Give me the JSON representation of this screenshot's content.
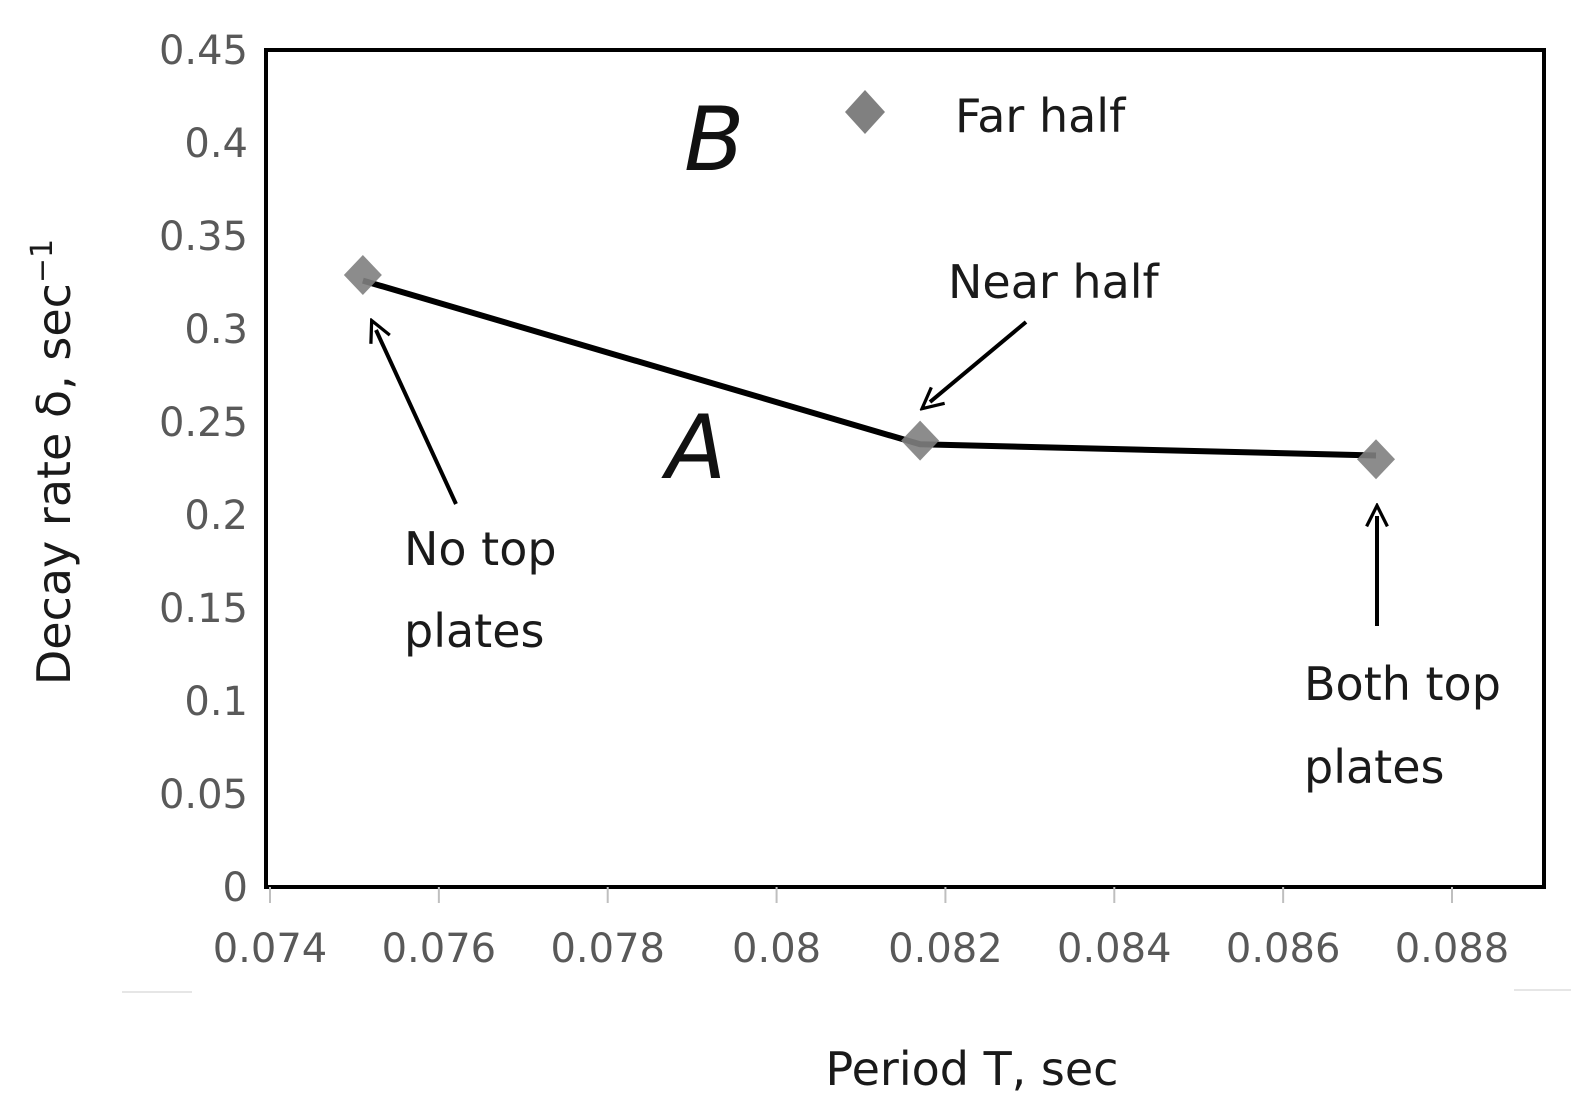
{
  "chart_data": {
    "type": "scatter",
    "title": "",
    "xlabel": "Period T, sec",
    "ylabel_main": "Decay rate δ,  sec",
    "ylabel_sup": "−1",
    "xlim": [
      0.074,
      0.089
    ],
    "ylim": [
      0,
      0.45
    ],
    "x_ticks": [
      "0.074",
      "0.076",
      "0.078",
      "0.08",
      "0.082",
      "0.084",
      "0.086",
      "0.088"
    ],
    "x_tick_values": [
      0.074,
      0.076,
      0.078,
      0.08,
      0.082,
      0.084,
      0.086,
      0.088
    ],
    "y_ticks": [
      "0",
      "0.05",
      "0.1",
      "0.15",
      "0.2",
      "0.25",
      "0.3",
      "0.35",
      "0.4",
      "0.45"
    ],
    "y_tick_values": [
      0,
      0.05,
      0.1,
      0.15,
      0.2,
      0.25,
      0.3,
      0.35,
      0.4,
      0.45
    ],
    "grid": false,
    "legend_position": "top-right",
    "series": [
      {
        "name": "Far half",
        "marker": "diamond",
        "color": "#808080",
        "x": [
          0.0751,
          0.0817,
          0.0871
        ],
        "y": [
          0.329,
          0.24,
          0.23
        ]
      }
    ],
    "line": {
      "color": "#000000",
      "x": [
        0.0751,
        0.0817,
        0.0871
      ],
      "y": [
        0.326,
        0.238,
        0.232
      ]
    },
    "panel_labels": [
      "B",
      "A"
    ],
    "annotations": [
      {
        "id": "no-top",
        "lines": [
          "No top",
          "plates"
        ]
      },
      {
        "id": "near-half",
        "lines": [
          "Near half"
        ]
      },
      {
        "id": "both-top",
        "lines": [
          "Both top",
          "plates"
        ]
      }
    ]
  }
}
